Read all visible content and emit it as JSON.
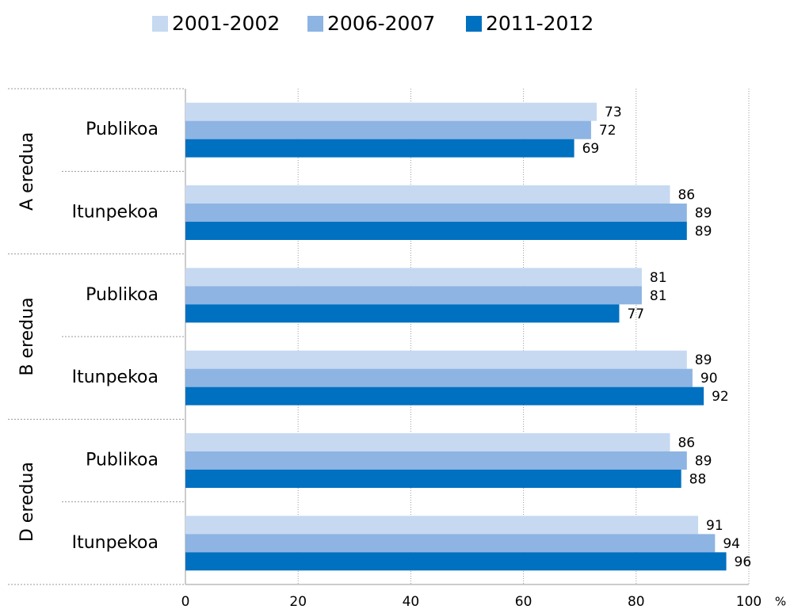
{
  "chart_data": {
    "type": "bar",
    "orientation": "horizontal",
    "groups": [
      "A eredua",
      "B eredua",
      "D eredua"
    ],
    "categories": [
      "Publikoa",
      "Itunpekoa",
      "Publikoa",
      "Itunpekoa",
      "Publikoa",
      "Itunpekoa"
    ],
    "series": [
      {
        "name": "2001-2002",
        "color": "#c6d9f1",
        "values": [
          73,
          86,
          81,
          89,
          86,
          91
        ]
      },
      {
        "name": "2006-2007",
        "color": "#8db4e2",
        "values": [
          72,
          89,
          81,
          90,
          89,
          94
        ]
      },
      {
        "name": "2011-2012",
        "color": "#0070c0",
        "values": [
          69,
          89,
          77,
          92,
          88,
          96
        ]
      }
    ],
    "xlim": [
      0,
      100
    ],
    "xticks": [
      0,
      20,
      40,
      60,
      80,
      100
    ],
    "x_unit": "%",
    "grid": true,
    "legend": "top"
  }
}
